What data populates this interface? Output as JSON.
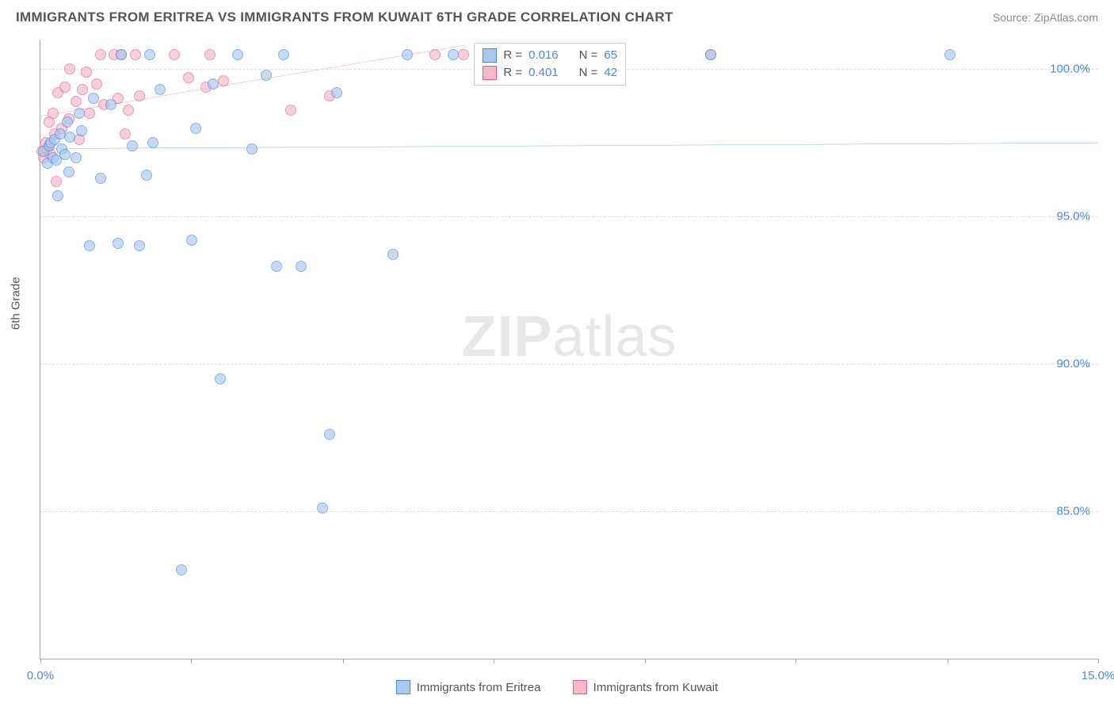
{
  "header": {
    "title": "IMMIGRANTS FROM ERITREA VS IMMIGRANTS FROM KUWAIT 6TH GRADE CORRELATION CHART",
    "source_prefix": "Source: ",
    "source_name": "ZipAtlas.com"
  },
  "watermark": {
    "bold": "ZIP",
    "light": "atlas"
  },
  "chart": {
    "type": "scatter",
    "ylabel": "6th Grade",
    "background_color": "#ffffff",
    "grid_color": "#dddddd",
    "axis_color": "#aaaaaa",
    "xlim": [
      0.0,
      15.0
    ],
    "ylim": [
      80.0,
      101.0
    ],
    "xtick_positions": [
      0.0,
      2.14,
      4.29,
      6.43,
      8.57,
      10.71,
      12.86,
      15.0
    ],
    "xtick_labels": {
      "first": "0.0%",
      "last": "15.0%"
    },
    "ytick_values": [
      85.0,
      90.0,
      95.0,
      100.0
    ],
    "ytick_labels": [
      "85.0%",
      "90.0%",
      "95.0%",
      "100.0%"
    ],
    "marker_size": 14,
    "series": [
      {
        "name": "Immigrants from Eritrea",
        "label_key": "eritrea",
        "color_fill": "#a8c8ec",
        "color_stroke": "#4a86e8",
        "r_value": "0.016",
        "n_value": "65",
        "trend": {
          "x1": 0.0,
          "y1": 97.3,
          "x2": 15.0,
          "y2": 97.5,
          "color": "#2e75d6",
          "width": 2
        },
        "points": [
          [
            0.05,
            97.2
          ],
          [
            0.1,
            96.8
          ],
          [
            0.12,
            97.4
          ],
          [
            0.15,
            97.5
          ],
          [
            0.18,
            97.0
          ],
          [
            0.2,
            97.6
          ],
          [
            0.22,
            96.9
          ],
          [
            0.25,
            95.7
          ],
          [
            0.28,
            97.8
          ],
          [
            0.3,
            97.3
          ],
          [
            0.35,
            97.1
          ],
          [
            0.38,
            98.2
          ],
          [
            0.4,
            96.5
          ],
          [
            0.42,
            97.7
          ],
          [
            0.5,
            97.0
          ],
          [
            0.55,
            98.5
          ],
          [
            0.58,
            97.9
          ],
          [
            0.7,
            94.0
          ],
          [
            0.75,
            99.0
          ],
          [
            0.85,
            96.3
          ],
          [
            1.0,
            98.8
          ],
          [
            1.1,
            94.1
          ],
          [
            1.15,
            100.5
          ],
          [
            1.3,
            97.4
          ],
          [
            1.4,
            94.0
          ],
          [
            1.5,
            96.4
          ],
          [
            1.55,
            100.5
          ],
          [
            1.6,
            97.5
          ],
          [
            1.7,
            99.3
          ],
          [
            2.0,
            83.0
          ],
          [
            2.15,
            94.2
          ],
          [
            2.2,
            98.0
          ],
          [
            2.45,
            99.5
          ],
          [
            2.55,
            89.5
          ],
          [
            2.8,
            100.5
          ],
          [
            3.0,
            97.3
          ],
          [
            3.2,
            99.8
          ],
          [
            3.35,
            93.3
          ],
          [
            3.45,
            100.5
          ],
          [
            3.7,
            93.3
          ],
          [
            4.0,
            85.1
          ],
          [
            4.1,
            87.6
          ],
          [
            4.2,
            99.2
          ],
          [
            5.0,
            93.7
          ],
          [
            5.2,
            100.5
          ],
          [
            5.85,
            100.5
          ],
          [
            9.5,
            100.5
          ],
          [
            12.9,
            100.5
          ]
        ]
      },
      {
        "name": "Immigrants from Kuwait",
        "label_key": "kuwait",
        "color_fill": "#f5b8c9",
        "color_stroke": "#e85d8a",
        "r_value": "0.401",
        "n_value": "42",
        "trend": {
          "x1": 0.0,
          "y1": 98.4,
          "x2": 6.0,
          "y2": 100.8,
          "color": "#e85d8a",
          "width": 2
        },
        "points": [
          [
            0.02,
            97.2
          ],
          [
            0.05,
            97.0
          ],
          [
            0.08,
            97.5
          ],
          [
            0.1,
            97.3
          ],
          [
            0.12,
            98.2
          ],
          [
            0.15,
            97.1
          ],
          [
            0.18,
            98.5
          ],
          [
            0.2,
            97.8
          ],
          [
            0.22,
            96.2
          ],
          [
            0.25,
            99.2
          ],
          [
            0.3,
            98.0
          ],
          [
            0.35,
            99.4
          ],
          [
            0.4,
            98.3
          ],
          [
            0.42,
            100.0
          ],
          [
            0.5,
            98.9
          ],
          [
            0.55,
            97.6
          ],
          [
            0.6,
            99.3
          ],
          [
            0.65,
            99.9
          ],
          [
            0.7,
            98.5
          ],
          [
            0.8,
            99.5
          ],
          [
            0.85,
            100.5
          ],
          [
            0.9,
            98.8
          ],
          [
            1.05,
            100.5
          ],
          [
            1.1,
            99.0
          ],
          [
            1.15,
            100.5
          ],
          [
            1.2,
            97.8
          ],
          [
            1.25,
            98.6
          ],
          [
            1.35,
            100.5
          ],
          [
            1.4,
            99.1
          ],
          [
            1.9,
            100.5
          ],
          [
            2.1,
            99.7
          ],
          [
            2.35,
            99.4
          ],
          [
            2.4,
            100.5
          ],
          [
            2.6,
            99.6
          ],
          [
            3.55,
            98.6
          ],
          [
            4.1,
            99.1
          ],
          [
            5.6,
            100.5
          ],
          [
            6.0,
            100.5
          ],
          [
            9.5,
            100.5
          ]
        ]
      }
    ],
    "legend_top": {
      "r_label": "R =",
      "n_label": "N ="
    },
    "legend_bottom": {
      "eritrea": "Immigrants from Eritrea",
      "kuwait": "Immigrants from Kuwait"
    }
  }
}
